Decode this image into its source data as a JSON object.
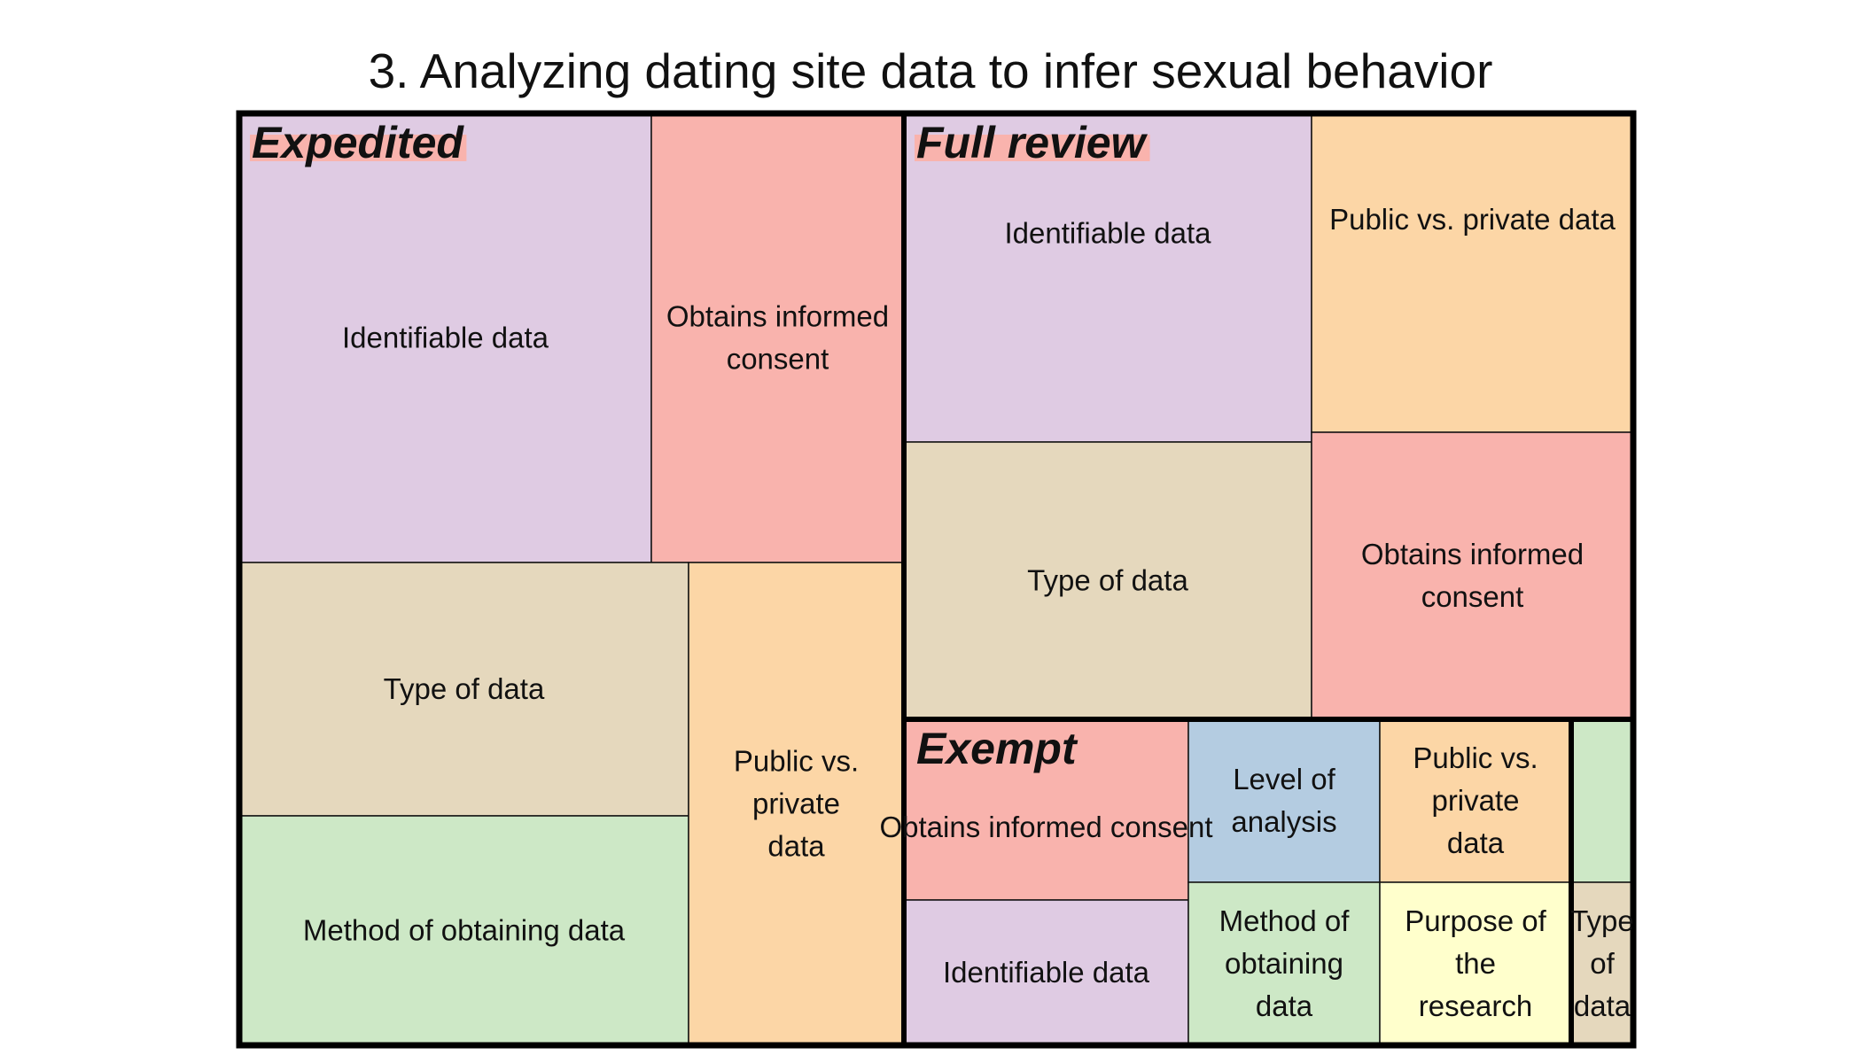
{
  "chart_data": {
    "type": "treemap",
    "title": "3. Analyzing dating site data to infer sexual behavior",
    "colors": {
      "Identifiable data": "#dfcbe3",
      "Obtains informed consent": "#f9b3ad",
      "Type of data": "#e5d8bd",
      "Public vs. private data": "#fcd6a6",
      "Method of obtaining data": "#cde8c6",
      "Level of analysis": "#b4cce1",
      "Purpose of the research": "#ffffcc",
      "Unlabeled": "#cde8c6"
    },
    "groups": [
      {
        "name": "Expedited",
        "label_highlight": "#f9b3ad",
        "tiles": [
          {
            "label": "Identifiable data",
            "color_key": "Identifiable data"
          },
          {
            "label": "Obtains informed consent",
            "color_key": "Obtains informed consent"
          },
          {
            "label": "Type of data",
            "color_key": "Type of data"
          },
          {
            "label": "Method of obtaining data",
            "color_key": "Method of obtaining data"
          },
          {
            "label": "Public vs. private data",
            "color_key": "Public vs. private data"
          }
        ]
      },
      {
        "name": "Full review",
        "label_highlight": "#f9b3ad",
        "tiles": [
          {
            "label": "Identifiable data",
            "color_key": "Identifiable data"
          },
          {
            "label": "Type of data",
            "color_key": "Type of data"
          },
          {
            "label": "Public vs. private data",
            "color_key": "Public vs. private data"
          },
          {
            "label": "Obtains informed consent",
            "color_key": "Obtains informed consent"
          }
        ]
      },
      {
        "name": "Exempt",
        "label_highlight": "",
        "tiles": [
          {
            "label": "Obtains informed consent",
            "color_key": "Obtains informed consent"
          },
          {
            "label": "Identifiable data",
            "color_key": "Identifiable data"
          },
          {
            "label": "Level of analysis",
            "color_key": "Level of analysis"
          },
          {
            "label": "Method of obtaining data",
            "color_key": "Method of obtaining data"
          },
          {
            "label": "Public vs. private data",
            "color_key": "Public vs. private data"
          },
          {
            "label": "Purpose of the research",
            "color_key": "Purpose of the research"
          }
        ]
      },
      {
        "name": "",
        "label_highlight": "",
        "tiles": [
          {
            "label": "",
            "color_key": "Unlabeled"
          },
          {
            "label": "Type of data",
            "color_key": "Type of data"
          }
        ]
      }
    ]
  }
}
